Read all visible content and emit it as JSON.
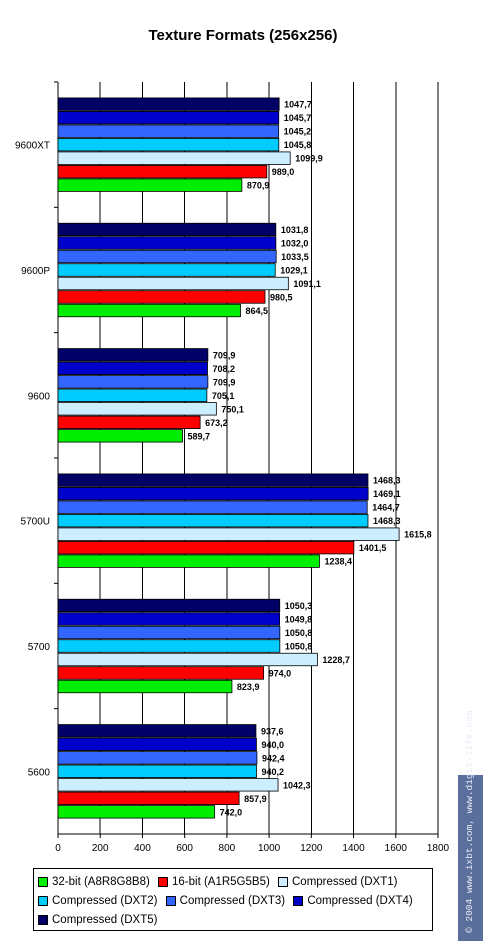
{
  "chart_data": {
    "type": "bar",
    "orientation": "horizontal",
    "title": "Texture Formats (256x256)",
    "categories": [
      "9600XT",
      "9600P",
      "9600",
      "5700U",
      "5700",
      "5600"
    ],
    "xlim": [
      0,
      1800
    ],
    "xticks": [
      0,
      200,
      400,
      600,
      800,
      1000,
      1200,
      1400,
      1600,
      1800
    ],
    "grid": "vertical",
    "legend_position": "bottom",
    "series": [
      {
        "name": "Compressed (DXT5)",
        "color": "#000066",
        "values": [
          1047.7,
          1031.8,
          709.9,
          1468.3,
          1050.3,
          937.6
        ],
        "labels": [
          "1047,7",
          "1031,8",
          "709,9",
          "1468,3",
          "1050,3",
          "937,6"
        ]
      },
      {
        "name": "Compressed (DXT4)",
        "color": "#0000cc",
        "values": [
          1045.7,
          1032.0,
          708.2,
          1469.1,
          1049.8,
          940.0
        ],
        "labels": [
          "1045,7",
          "1032,0",
          "708,2",
          "1469,1",
          "1049,8",
          "940,0"
        ]
      },
      {
        "name": "Compressed (DXT3)",
        "color": "#3366ff",
        "values": [
          1045.2,
          1033.5,
          709.9,
          1464.7,
          1050.8,
          942.4
        ],
        "labels": [
          "1045,2",
          "1033,5",
          "709,9",
          "1464,7",
          "1050,8",
          "942,4"
        ]
      },
      {
        "name": "Compressed (DXT2)",
        "color": "#00ccff",
        "values": [
          1045.8,
          1029.1,
          705.1,
          1468.3,
          1050.8,
          940.2
        ],
        "labels": [
          "1045,8",
          "1029,1",
          "705,1",
          "1468,3",
          "1050,8",
          "940,2"
        ]
      },
      {
        "name": "Compressed (DXT1)",
        "color": "#cceeff",
        "values": [
          1099.9,
          1091.1,
          750.1,
          1615.8,
          1228.7,
          1042.3
        ],
        "labels": [
          "1099,9",
          "1091,1",
          "750,1",
          "1615,8",
          "1228,7",
          "1042,3"
        ]
      },
      {
        "name": "16-bit (A1R5G5B5)",
        "color": "#ff0000",
        "values": [
          989.0,
          980.5,
          673.2,
          1401.5,
          974.0,
          857.9
        ],
        "labels": [
          "989,0",
          "980,5",
          "673,2",
          "1401,5",
          "974,0",
          "857,9"
        ]
      },
      {
        "name": "32-bit (A8R8G8B8)",
        "color": "#00ee00",
        "values": [
          870.9,
          864.5,
          589.7,
          1238.4,
          823.9,
          742.0
        ],
        "labels": [
          "870,9",
          "864,5",
          "589,7",
          "1238,4",
          "823,9",
          "742,0"
        ]
      }
    ]
  },
  "legend": {
    "items": [
      {
        "label": "32-bit (A8R8G8B8)",
        "color": "#00ee00"
      },
      {
        "label": "16-bit (A1R5G5B5)",
        "color": "#ff0000"
      },
      {
        "label": "Compressed (DXT1)",
        "color": "#cceeff"
      },
      {
        "label": "Compressed (DXT2)",
        "color": "#00ccff"
      },
      {
        "label": "Compressed (DXT3)",
        "color": "#3366ff"
      },
      {
        "label": "Compressed (DXT4)",
        "color": "#0000cc"
      },
      {
        "label": "Compressed (DXT5)",
        "color": "#000066"
      }
    ]
  },
  "watermark": {
    "text": "© 2004 www.ixbt.com, www.digit-life.com"
  }
}
